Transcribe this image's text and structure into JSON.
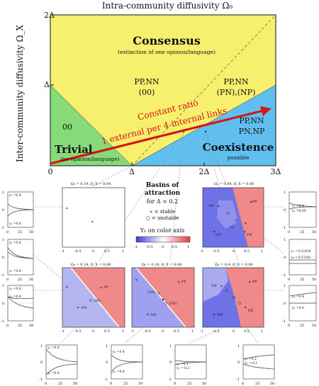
{
  "phase_diagram": {
    "x_axis_label": "Intra-community diffusivity Ω₀",
    "y_axis_label": "Inter-community diffusivity Ω_X",
    "x_ticks": [
      "0",
      "Δ",
      "2Δ",
      "3Δ"
    ],
    "y_ticks": [
      "2Δ",
      "Δ"
    ],
    "colors": {
      "consensus": "#f7f06e",
      "trivial": "#86db78",
      "coexistence": "#61bff0",
      "arrow": "#d61515",
      "bg_gray": "#bdbdbd"
    },
    "regions": {
      "consensus": {
        "title": "Consensus",
        "subtitle": "(extinction of one opinion/language)"
      },
      "trivial": {
        "title": "Trivial",
        "subtitle": "(no opinion/language)",
        "state": "00"
      },
      "coexistence": {
        "title": "Coexistence",
        "subtitle": "possible",
        "states_line1": "PP,NN",
        "states_line2": "PN,NP"
      },
      "consensus_left": {
        "line1": "PP,NN",
        "line2": "(00)"
      },
      "consensus_right": {
        "line1": "PP,NN",
        "line2": "(PN),(NP)"
      }
    },
    "arrow_label_line1": "Constant ratio",
    "arrow_label_line2": "1 external per 4 internal links"
  },
  "basins": {
    "title_line1": "Basins of",
    "title_line2": "attraction",
    "title_line3": "for Δ = 0.2",
    "stable_legend": "∗ = stable",
    "unstable_legend": "○ = unstable",
    "colorbar_label": "Y₁ on color axis",
    "colorbar_ticks": [
      "-1",
      "-0.5",
      "0",
      "0.5",
      "1"
    ],
    "panels": {
      "top_left_title": "Ω₀ = 0.14, Ω_X = 0.04",
      "top_right_title": "Ω₀ = 0.44, Ω_X = 0.06",
      "bottom_left_title": "Ω₀ = 0.24, Ω_X = 0.08",
      "bottom_mid_title": "Ω₀ = 0.34, Ω_X = 0.08",
      "bottom_right_title": "Ω₀ = 0.4, Ω_X = 0.08"
    },
    "point_labels": {
      "pp": "PP",
      "nn": "NN",
      "pn": "PN",
      "np": "NP",
      "zero": "(00)",
      "npp": "(NP)",
      "pnp": "(PN)"
    },
    "axis_ticks_x": [
      "-1",
      "-0.5",
      "0",
      "0.5",
      "1"
    ],
    "axis_ticks_y": [
      "1",
      "0.5",
      "0",
      "-0.5",
      "-1"
    ]
  },
  "time_series": {
    "x_ticks": [
      "0",
      "25",
      "50"
    ],
    "y_ticks": [
      "1",
      "0",
      "-1"
    ],
    "left": [
      {
        "a": "y₂ =0.4",
        "b": "y₁ =0.8"
      },
      {
        "a": "y₂ =0.4",
        "b": "y₁ =0.8"
      },
      {
        "a": "y₂ =0.4",
        "b": "y₁ =0.4"
      }
    ],
    "right": [
      {
        "a": "y₁ =0.4",
        "b": "y₂ =0.05"
      },
      {
        "a": "y₁ =-0.52036",
        "b": "y₂ =-0.17241"
      },
      {
        "a": "y₁ =0.4",
        "b": "y₂ =0.8"
      }
    ],
    "bottom": [
      {
        "a": "y₁ =0.8",
        "b": "y₂ =0.8"
      },
      {
        "a": "y₂ =0.4",
        "b": "y₁ =0.8"
      },
      {
        "a": "y₁ =0.1",
        "b": "y₂ =-0.2"
      },
      {
        "a": "y₁ =0.2",
        "b": "y₂ =-0.1"
      }
    ]
  }
}
